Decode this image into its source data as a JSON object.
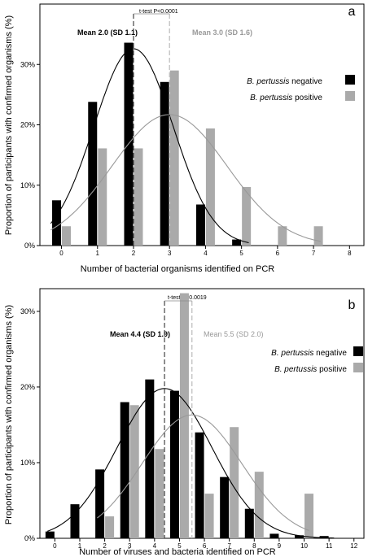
{
  "chart_data": [
    {
      "type": "bar",
      "panel_label": "a",
      "xlabel": "Number of bacterial organisms identified on PCR",
      "ylabel": "Proportion of participants with confirmed organisms (%)",
      "x_ticks": [
        "0",
        "1",
        "2",
        "3",
        "4",
        "5",
        "6",
        "7",
        "8"
      ],
      "y_ticks": [
        {
          "value": 0,
          "label": "0%"
        },
        {
          "value": 10,
          "label": "10%"
        },
        {
          "value": 20,
          "label": "20%"
        },
        {
          "value": 30,
          "label": "30%"
        }
      ],
      "xlim": [
        -0.6,
        8.4
      ],
      "ylim": [
        0,
        40
      ],
      "ttest": {
        "label": "t-test P<0.0001"
      },
      "series": [
        {
          "name": "B. pertussis negative",
          "legend_italic": "B. pertussis",
          "legend_rest": " negative",
          "color": "#000000",
          "mean_label": "Mean 2.0 (SD 1.1)",
          "mean": 2.0,
          "sd": 1.1,
          "curve_peak": 32.6,
          "x": [
            0,
            1,
            2,
            3,
            4,
            5
          ],
          "values": [
            7.5,
            23.8,
            33.6,
            27.1,
            6.8,
            1.0
          ]
        },
        {
          "name": "B. pertussis positive",
          "legend_italic": "B. pertussis",
          "legend_rest": " positive",
          "color": "#aaaaaa",
          "mean_label": "Mean 3.0 (SD 1.6)",
          "mean": 3.0,
          "sd": 1.6,
          "curve_peak": 21.7,
          "x": [
            0,
            1,
            2,
            3,
            4,
            5,
            6,
            7
          ],
          "values": [
            3.2,
            16.1,
            16.1,
            29.0,
            19.4,
            9.7,
            3.2,
            3.2
          ]
        }
      ]
    },
    {
      "type": "bar",
      "panel_label": "b",
      "xlabel": "Number of viruses and bacteria identified on PCR",
      "ylabel": "Proportion of participants with confirmed organisms (%)",
      "x_ticks": [
        "0",
        "1",
        "2",
        "3",
        "4",
        "5",
        "6",
        "7",
        "8",
        "9",
        "10",
        "11",
        "12"
      ],
      "y_ticks": [
        {
          "value": 0,
          "label": "0%"
        },
        {
          "value": 10,
          "label": "10%"
        },
        {
          "value": 20,
          "label": "20%"
        },
        {
          "value": 30,
          "label": "30%"
        }
      ],
      "xlim": [
        -0.6,
        12.4
      ],
      "ylim": [
        0,
        33
      ],
      "ttest": {
        "label": "t-test P=0.0019"
      },
      "series": [
        {
          "name": "B. pertussis negative",
          "legend_italic": "B. pertussis",
          "legend_rest": " negative",
          "color": "#000000",
          "mean_label": "Mean 4.4 (SD 1.9)",
          "mean": 4.4,
          "sd": 1.9,
          "curve_peak": 19.8,
          "x": [
            0,
            1,
            2,
            3,
            4,
            5,
            6,
            7,
            8,
            9,
            10,
            11
          ],
          "values": [
            0.9,
            4.5,
            9.1,
            18.0,
            21.0,
            19.5,
            14.0,
            8.1,
            3.9,
            0.6,
            0.4,
            0.3
          ]
        },
        {
          "name": "B. pertussis positive",
          "legend_italic": "B. pertussis",
          "legend_rest": " positive",
          "color": "#aaaaaa",
          "mean_label": "Mean 5.5 (SD 2.0)",
          "mean": 5.5,
          "sd": 2.0,
          "curve_peak": 16.3,
          "x": [
            2,
            3,
            4,
            5,
            6,
            7,
            8,
            9,
            10
          ],
          "values": [
            2.9,
            17.6,
            11.8,
            32.4,
            5.9,
            14.7,
            8.8,
            0.0,
            5.9
          ]
        }
      ]
    }
  ]
}
